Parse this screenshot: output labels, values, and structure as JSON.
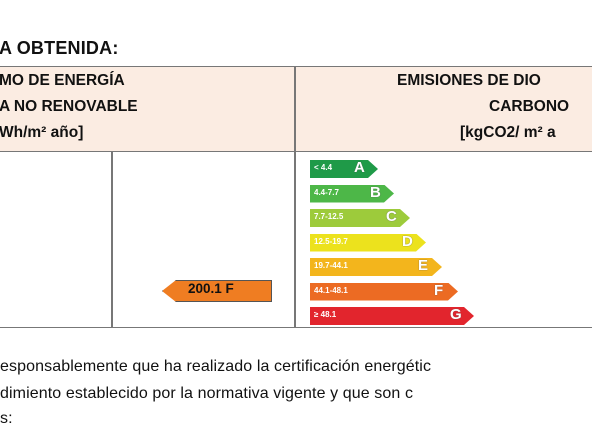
{
  "section_title": "A OBTENIDA:",
  "left_header": {
    "line1": "MO DE ENERGÍA",
    "line2": "A NO RENOVABLE",
    "line3": "Wh/m² año]"
  },
  "right_header": {
    "line1": "EMISIONES DE DIO",
    "line2": "CARBONO",
    "line3": "[kgCO2/ m² a"
  },
  "scale": [
    {
      "range": "< 4.4",
      "letter": "A",
      "color": "#1f9a48"
    },
    {
      "range": "4.4-7.7",
      "letter": "B",
      "color": "#4db748"
    },
    {
      "range": "7.7-12.5",
      "letter": "C",
      "color": "#9dcb3b"
    },
    {
      "range": "12.5-19.7",
      "letter": "D",
      "color": "#ece21d"
    },
    {
      "range": "19.7-44.1",
      "letter": "E",
      "color": "#f3b51c"
    },
    {
      "range": "44.1-48.1",
      "letter": "F",
      "color": "#ec6b23"
    },
    {
      "range": "≥ 48.1",
      "letter": "G",
      "color": "#e2252d"
    }
  ],
  "rating_marker": {
    "value": "200.1 F",
    "color": "#ef7d22"
  },
  "paragraph": {
    "line1": "esponsablemente que ha realizado la certificación energétic",
    "line2": "dimiento establecido por la normativa vigente y que son c",
    "line3": "s:"
  }
}
